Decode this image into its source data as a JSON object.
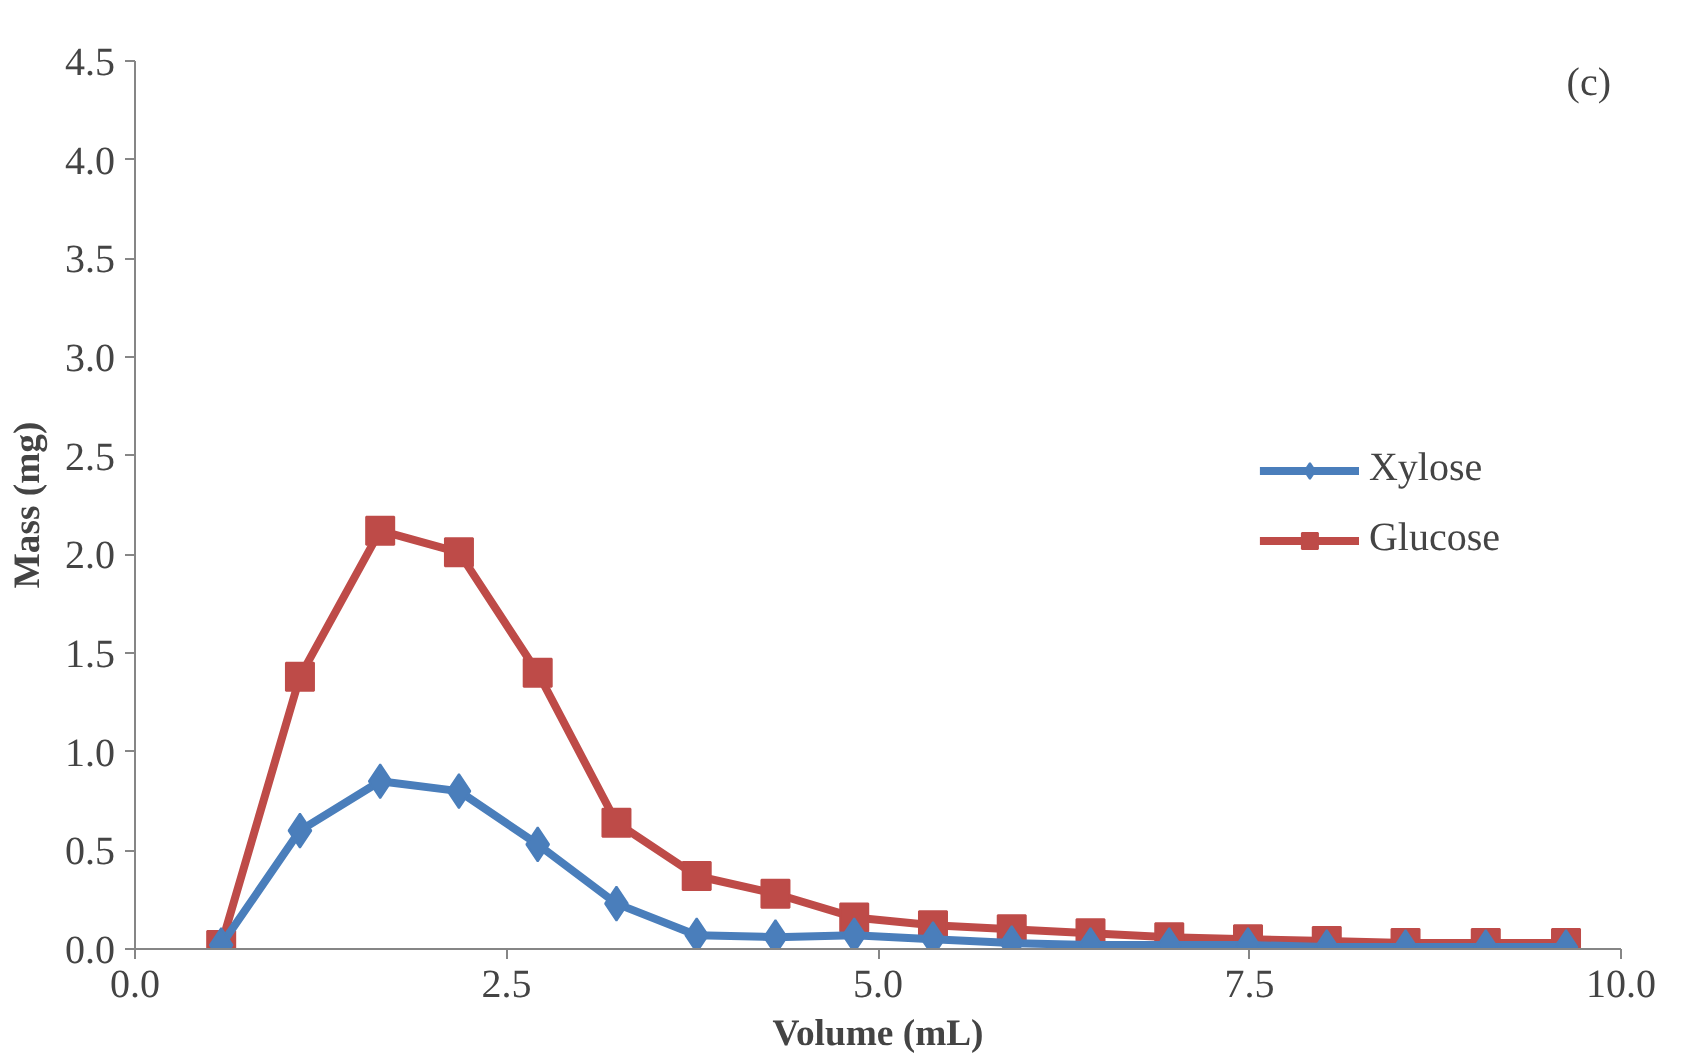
{
  "chart_data": {
    "type": "line",
    "xlabel": "Volume (mL)",
    "ylabel": "Mass (mg)",
    "annotations": [
      "(c)"
    ],
    "x": [
      0.58,
      1.11,
      1.65,
      2.18,
      2.71,
      3.24,
      3.78,
      4.31,
      4.84,
      5.37,
      5.9,
      6.43,
      6.96,
      7.49,
      8.02,
      8.55,
      9.09,
      9.63
    ],
    "series": [
      {
        "name": "Xylose",
        "color": "#4a7ebb",
        "marker": "diamond",
        "values": [
          0.02,
          0.6,
          0.85,
          0.8,
          0.53,
          0.23,
          0.07,
          0.06,
          0.07,
          0.05,
          0.03,
          0.02,
          0.02,
          0.02,
          0.01,
          0.01,
          0.01,
          0.01
        ]
      },
      {
        "name": "Glucose",
        "color": "#be4b48",
        "marker": "square",
        "values": [
          0.02,
          1.38,
          2.12,
          2.01,
          1.4,
          0.64,
          0.37,
          0.28,
          0.16,
          0.12,
          0.1,
          0.08,
          0.06,
          0.05,
          0.04,
          0.03,
          0.03,
          0.03
        ]
      }
    ],
    "xlim": [
      0,
      10
    ],
    "ylim": [
      0,
      4.5
    ],
    "xticks": [
      {
        "value": 0,
        "label": "0.0"
      },
      {
        "value": 2.5,
        "label": "2.5"
      },
      {
        "value": 5,
        "label": "5.0"
      },
      {
        "value": 7.5,
        "label": "7.5"
      },
      {
        "value": 10,
        "label": "10.0"
      }
    ],
    "yticks": [
      {
        "value": 0,
        "label": "0.0"
      },
      {
        "value": 0.5,
        "label": "0.5"
      },
      {
        "value": 1,
        "label": "1.0"
      },
      {
        "value": 1.5,
        "label": "1.5"
      },
      {
        "value": 2,
        "label": "2.0"
      },
      {
        "value": 2.5,
        "label": "2.5"
      },
      {
        "value": 3,
        "label": "3.0"
      },
      {
        "value": 3.5,
        "label": "3.5"
      },
      {
        "value": 4,
        "label": "4.0"
      },
      {
        "value": 4.5,
        "label": "4.5"
      }
    ],
    "grid": false,
    "legend": "right",
    "line_style": "solid"
  }
}
